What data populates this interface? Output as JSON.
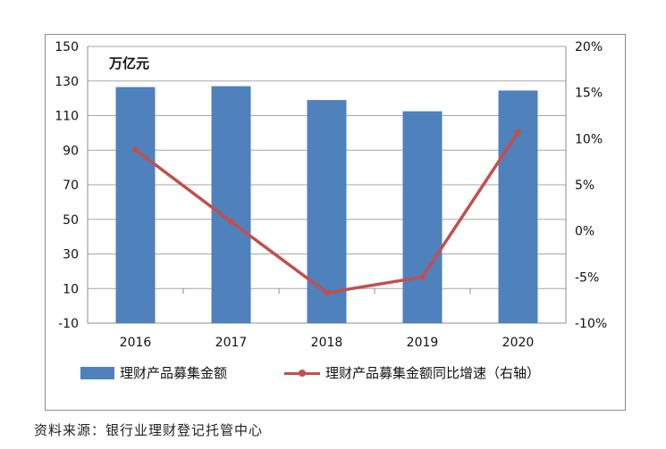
{
  "chart_data": {
    "type": "bar",
    "categories": [
      "2016",
      "2017",
      "2018",
      "2019",
      "2020"
    ],
    "series": [
      {
        "name": "理财产品募集金额",
        "type": "bar",
        "axis": "left",
        "values": [
          126.5,
          127,
          119,
          112.5,
          124.5
        ],
        "color": "#4f81bd"
      },
      {
        "name": "理财产品募集金额同比增速（右轴）",
        "type": "line",
        "axis": "right",
        "values": [
          8.8,
          1.0,
          -6.7,
          -5.0,
          10.7
        ],
        "color": "#c0504d"
      }
    ],
    "y_left": {
      "unit_label": "万亿元",
      "ylim": [
        -10,
        150
      ],
      "ticks": [
        "150",
        "130",
        "110",
        "90",
        "70",
        "50",
        "30",
        "10",
        "-10"
      ],
      "tick_values": [
        150,
        130,
        110,
        90,
        70,
        50,
        30,
        10,
        -10
      ]
    },
    "y_right": {
      "ylim": [
        -10,
        20
      ],
      "ticks": [
        "20%",
        "15%",
        "10%",
        "5%",
        "0%",
        "-5%",
        "-10%"
      ],
      "tick_values": [
        20,
        15,
        10,
        5,
        0,
        -5,
        -10
      ]
    },
    "grid": true,
    "legend_position": "bottom"
  },
  "source_note": "资料来源：银行业理财登记托管中心"
}
